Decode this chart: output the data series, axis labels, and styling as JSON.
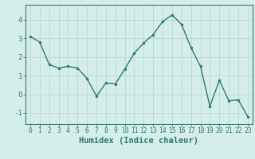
{
  "x": [
    0,
    1,
    2,
    3,
    4,
    5,
    6,
    7,
    8,
    9,
    10,
    11,
    12,
    13,
    14,
    15,
    16,
    17,
    18,
    19,
    20,
    21,
    22,
    23
  ],
  "y": [
    3.1,
    2.8,
    1.6,
    1.4,
    1.5,
    1.4,
    0.85,
    -0.1,
    0.6,
    0.55,
    1.35,
    2.2,
    2.75,
    3.2,
    3.9,
    4.25,
    3.75,
    2.5,
    1.5,
    -0.65,
    0.75,
    -0.35,
    -0.3,
    -1.2
  ],
  "line_color": "#2d7a6e",
  "marker": "o",
  "marker_size": 2.0,
  "line_width": 1.0,
  "bg_color": "#d6eeea",
  "grid_color": "#b8d8d2",
  "xlabel": "Humidex (Indice chaleur)",
  "xlabel_fontsize": 7.5,
  "ylim": [
    -1.6,
    4.8
  ],
  "xlim": [
    -0.5,
    23.5
  ],
  "yticks": [
    -1,
    0,
    1,
    2,
    3,
    4
  ],
  "xticks": [
    0,
    1,
    2,
    3,
    4,
    5,
    6,
    7,
    8,
    9,
    10,
    11,
    12,
    13,
    14,
    15,
    16,
    17,
    18,
    19,
    20,
    21,
    22,
    23
  ],
  "xtick_fontsize": 5.8,
  "ytick_fontsize": 6.5
}
